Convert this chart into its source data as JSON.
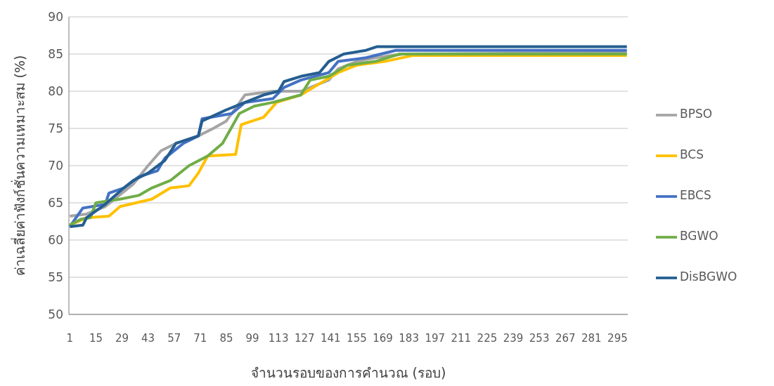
{
  "chart_data": {
    "type": "line",
    "xlabel": "จำนวนรอบของการคำนวณ (รอบ)",
    "ylabel": "ค่าเฉลี่ยค่าฟังก์ชั่นความเหมาะสม (%)",
    "xlim": [
      0.5,
      300.5
    ],
    "xticks": [
      1,
      15,
      29,
      43,
      57,
      71,
      85,
      99,
      113,
      127,
      141,
      155,
      169,
      183,
      197,
      211,
      225,
      239,
      253,
      267,
      281,
      295
    ],
    "ylim": [
      50,
      90
    ],
    "yticks": [
      50,
      55,
      60,
      65,
      70,
      75,
      80,
      85,
      90
    ],
    "grid": "y",
    "legend": "right",
    "marker": "none",
    "line_style": "solid",
    "series": [
      {
        "name": "BPSO",
        "color": "#a5a5a5",
        "x": [
          1,
          10,
          20,
          25,
          35,
          43,
          50,
          58,
          70,
          78,
          85,
          95,
          110,
          125,
          140,
          145,
          155,
          165,
          180,
          300
        ],
        "values": [
          63.2,
          63.5,
          64.5,
          65.5,
          67.5,
          70,
          72,
          73,
          74,
          75,
          76,
          79.5,
          80,
          80,
          81.5,
          83,
          84,
          84.5,
          85,
          85.2
        ]
      },
      {
        "name": "BCS",
        "color": "#ffc000",
        "x": [
          1,
          10,
          22,
          28,
          45,
          55,
          65,
          70,
          75,
          90,
          93,
          105,
          112,
          125,
          135,
          145,
          155,
          170,
          185,
          300
        ],
        "values": [
          62,
          63,
          63.2,
          64.5,
          65.5,
          67,
          67.3,
          69,
          71.3,
          71.5,
          75.5,
          76.5,
          78.5,
          79.5,
          81,
          82.5,
          83.5,
          84,
          84.8,
          84.8
        ]
      },
      {
        "name": "EBCS",
        "color": "#4472c4",
        "x": [
          1,
          8,
          20,
          22,
          30,
          38,
          48,
          52,
          62,
          70,
          72,
          88,
          95,
          110,
          116,
          125,
          140,
          145,
          160,
          176,
          300
        ],
        "values": [
          61.8,
          64.3,
          64.8,
          66.3,
          67,
          68.5,
          69.3,
          71,
          73,
          74,
          76.3,
          77,
          78.5,
          79,
          80.5,
          81.5,
          82.5,
          84,
          84.5,
          85.5,
          85.5
        ]
      },
      {
        "name": "BGWO",
        "color": "#70ad47",
        "x": [
          1,
          7,
          12,
          15,
          28,
          38,
          45,
          55,
          65,
          75,
          83,
          92,
          100,
          110,
          125,
          130,
          140,
          150,
          165,
          178,
          300
        ],
        "values": [
          62,
          62.8,
          63,
          65,
          65.5,
          66,
          67,
          68,
          70,
          71.3,
          73,
          77,
          78,
          78.5,
          79.5,
          81.5,
          82,
          83.5,
          84,
          85,
          85
        ]
      },
      {
        "name": "DisBGWO",
        "color": "#255e91",
        "x": [
          1,
          8,
          10,
          20,
          30,
          35,
          43,
          52,
          58,
          70,
          72,
          85,
          95,
          105,
          113,
          116,
          125,
          135,
          140,
          148,
          160,
          166,
          300
        ],
        "values": [
          61.8,
          62,
          63,
          64.8,
          67,
          68,
          69,
          70.7,
          73,
          74,
          76,
          77.5,
          78.5,
          79.5,
          80,
          81.3,
          82,
          82.5,
          84,
          85,
          85.5,
          86,
          86
        ]
      }
    ]
  }
}
